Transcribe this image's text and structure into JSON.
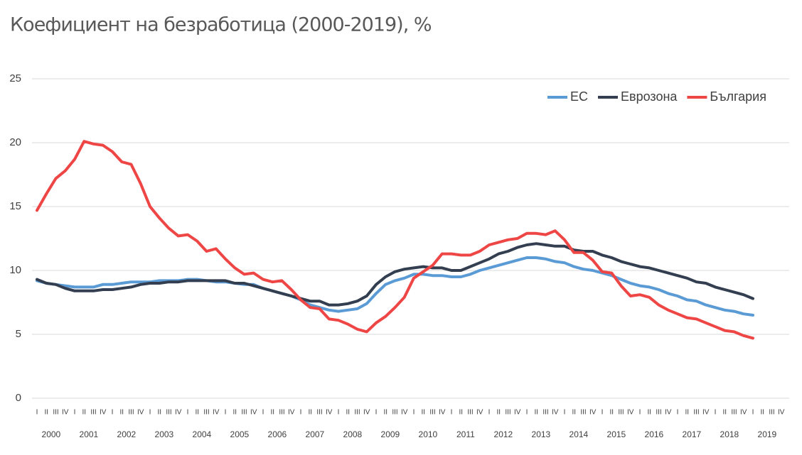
{
  "chart_data": {
    "type": "line",
    "title": "Коефициент на безработица (2000-2019), %",
    "categories": [
      "I",
      "II",
      "III",
      "IV",
      "I",
      "II",
      "III",
      "IV",
      "I",
      "II",
      "III",
      "IV",
      "I",
      "II",
      "III",
      "IV",
      "I",
      "II",
      "III",
      "IV",
      "I",
      "II",
      "III",
      "IV",
      "I",
      "II",
      "III",
      "IV",
      "I",
      "II",
      "III",
      "IV",
      "I",
      "II",
      "III",
      "IV",
      "I",
      "II",
      "III",
      "IV",
      "I",
      "II",
      "III",
      "IV",
      "I",
      "II",
      "III",
      "IV",
      "I",
      "II",
      "III",
      "IV",
      "I",
      "II",
      "III",
      "IV",
      "I",
      "II",
      "III",
      "IV",
      "I",
      "II",
      "III",
      "IV",
      "I",
      "II",
      "III",
      "IV",
      "I",
      "II",
      "III",
      "IV",
      "I",
      "II",
      "III",
      "IV",
      "I",
      "II",
      "III",
      "IV"
    ],
    "years": [
      "2000",
      "2001",
      "2002",
      "2003",
      "2004",
      "2005",
      "2006",
      "2007",
      "2008",
      "2009",
      "2010",
      "2011",
      "2012",
      "2013",
      "2014",
      "2015",
      "2016",
      "2017",
      "2018",
      "2019"
    ],
    "series": [
      {
        "name": "ЕС",
        "color": "#5b9bd5",
        "values": [
          9.2,
          9.0,
          8.9,
          8.8,
          8.7,
          8.7,
          8.7,
          8.9,
          8.9,
          9.0,
          9.1,
          9.1,
          9.1,
          9.2,
          9.2,
          9.2,
          9.3,
          9.3,
          9.2,
          9.1,
          9.1,
          9.0,
          8.9,
          8.9,
          8.6,
          8.4,
          8.2,
          8.0,
          7.7,
          7.3,
          7.1,
          6.9,
          6.8,
          6.9,
          7.0,
          7.4,
          8.2,
          8.9,
          9.2,
          9.4,
          9.7,
          9.7,
          9.6,
          9.6,
          9.5,
          9.5,
          9.7,
          10.0,
          10.2,
          10.4,
          10.6,
          10.8,
          11.0,
          11.0,
          10.9,
          10.7,
          10.6,
          10.3,
          10.1,
          10.0,
          9.8,
          9.6,
          9.3,
          9.0,
          8.8,
          8.7,
          8.5,
          8.2,
          8.0,
          7.7,
          7.6,
          7.3,
          7.1,
          6.9,
          6.8,
          6.6,
          6.5,
          null,
          null,
          null
        ]
      },
      {
        "name": "Еврозона",
        "color": "#333f50",
        "values": [
          9.3,
          9.0,
          8.9,
          8.6,
          8.4,
          8.4,
          8.4,
          8.5,
          8.5,
          8.6,
          8.7,
          8.9,
          9.0,
          9.0,
          9.1,
          9.1,
          9.2,
          9.2,
          9.2,
          9.2,
          9.2,
          9.0,
          9.0,
          8.8,
          8.6,
          8.4,
          8.2,
          8.0,
          7.8,
          7.6,
          7.6,
          7.3,
          7.3,
          7.4,
          7.6,
          8.0,
          8.9,
          9.5,
          9.9,
          10.1,
          10.2,
          10.3,
          10.2,
          10.2,
          10.0,
          10.0,
          10.3,
          10.6,
          10.9,
          11.3,
          11.5,
          11.8,
          12.0,
          12.1,
          12.0,
          11.9,
          11.9,
          11.6,
          11.5,
          11.5,
          11.2,
          11.0,
          10.7,
          10.5,
          10.3,
          10.2,
          10.0,
          9.8,
          9.6,
          9.4,
          9.1,
          9.0,
          8.7,
          8.5,
          8.3,
          8.1,
          7.8,
          null,
          null,
          null
        ]
      },
      {
        "name": "България",
        "color": "#ee4545",
        "values": [
          14.7,
          16.0,
          17.2,
          17.8,
          18.7,
          20.1,
          19.9,
          19.8,
          19.3,
          18.5,
          18.3,
          16.8,
          15.0,
          14.1,
          13.3,
          12.7,
          12.8,
          12.3,
          11.5,
          11.7,
          10.9,
          10.2,
          9.7,
          9.8,
          9.3,
          9.1,
          9.2,
          8.5,
          7.7,
          7.1,
          7.0,
          6.2,
          6.1,
          5.8,
          5.4,
          5.2,
          5.9,
          6.4,
          7.1,
          7.9,
          9.4,
          9.9,
          10.4,
          11.3,
          11.3,
          11.2,
          11.2,
          11.5,
          12.0,
          12.2,
          12.4,
          12.5,
          12.9,
          12.9,
          12.8,
          13.1,
          12.4,
          11.4,
          11.4,
          10.8,
          9.9,
          9.8,
          8.8,
          8.0,
          8.1,
          7.9,
          7.3,
          6.9,
          6.6,
          6.3,
          6.2,
          5.9,
          5.6,
          5.3,
          5.2,
          4.9,
          4.7,
          null,
          null,
          null
        ]
      }
    ],
    "ylim": [
      0,
      25
    ],
    "yticks": [
      0,
      5,
      10,
      15,
      20,
      25
    ],
    "grid": true,
    "legend": "top-right"
  }
}
